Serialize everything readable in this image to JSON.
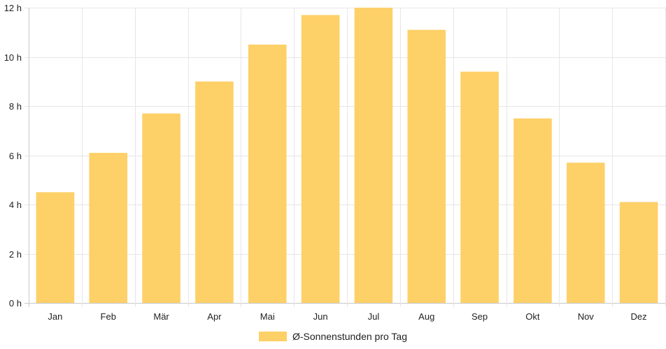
{
  "chart_data": {
    "type": "bar",
    "categories": [
      "Jan",
      "Feb",
      "Mär",
      "Apr",
      "Mai",
      "Jun",
      "Jul",
      "Aug",
      "Sep",
      "Okt",
      "Nov",
      "Dez"
    ],
    "series": [
      {
        "name": "Ø-Sonnenstunden pro Tag",
        "values": [
          4.5,
          6.1,
          7.7,
          9.0,
          10.5,
          11.7,
          12.0,
          11.1,
          9.4,
          7.5,
          5.7,
          4.1
        ],
        "color": "#fdd068"
      }
    ],
    "ylim": [
      0,
      12
    ],
    "y_ticks": [
      0,
      2,
      4,
      6,
      8,
      10,
      12
    ],
    "y_tick_suffix": " h",
    "grid": true,
    "legend_position": "bottom",
    "title": "",
    "xlabel": "",
    "ylabel": ""
  }
}
